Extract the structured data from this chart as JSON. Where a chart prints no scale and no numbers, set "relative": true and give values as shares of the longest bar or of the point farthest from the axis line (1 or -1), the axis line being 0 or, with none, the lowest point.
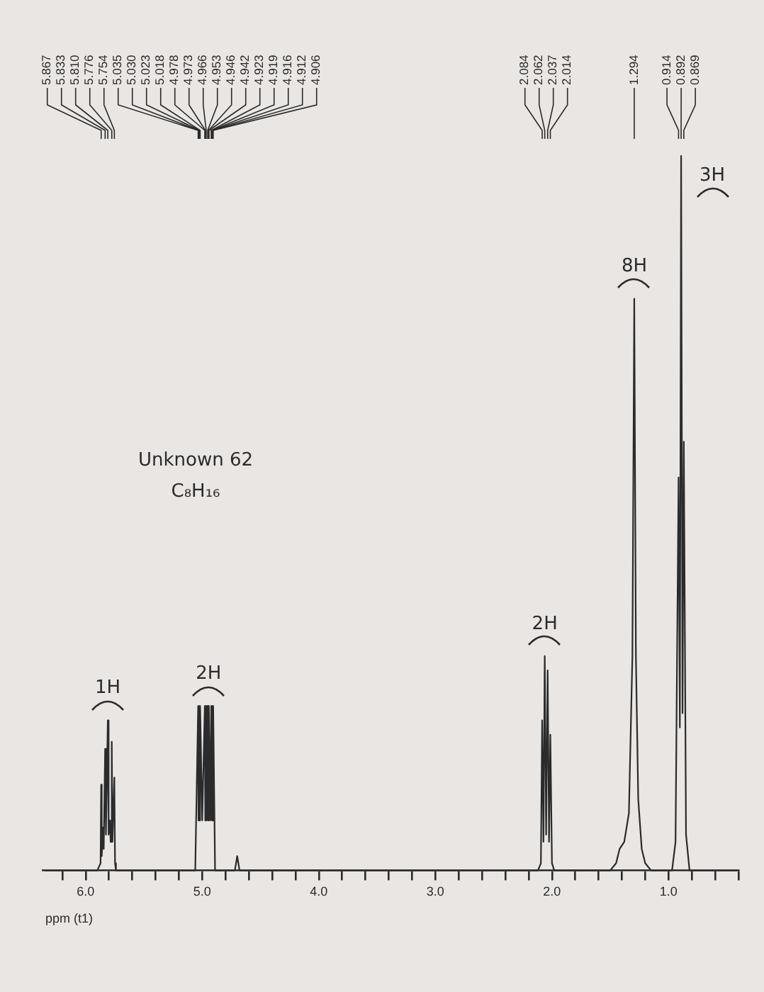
{
  "chart_data": {
    "type": "line",
    "title": "Unknown 62",
    "subtitle": "C₈H₁₆",
    "xlabel": "ppm (t1)",
    "relative": true,
    "color": "#2b2b2b",
    "xlim": [
      6.37,
      0.4
    ],
    "xticks": [
      {
        "value": 6.2,
        "label": null
      },
      {
        "value": 6,
        "label": "6.0"
      },
      {
        "value": 5.8,
        "label": null
      },
      {
        "value": 5.6,
        "label": null
      },
      {
        "value": 5.4,
        "label": null
      },
      {
        "value": 5.2,
        "label": null
      },
      {
        "value": 5,
        "label": "5.0"
      },
      {
        "value": 4.8,
        "label": null
      },
      {
        "value": 4.6,
        "label": null
      },
      {
        "value": 4.4,
        "label": null
      },
      {
        "value": 4.2,
        "label": null
      },
      {
        "value": 4,
        "label": "4.0"
      },
      {
        "value": 3.8,
        "label": null
      },
      {
        "value": 3.6,
        "label": null
      },
      {
        "value": 3.4,
        "label": null
      },
      {
        "value": 3.2,
        "label": null
      },
      {
        "value": 3,
        "label": "3.0"
      },
      {
        "value": 2.8,
        "label": null
      },
      {
        "value": 2.6,
        "label": null
      },
      {
        "value": 2.4,
        "label": null
      },
      {
        "value": 2.2,
        "label": null
      },
      {
        "value": 2,
        "label": "2.0"
      },
      {
        "value": 1.8,
        "label": null
      },
      {
        "value": 1.6,
        "label": null
      },
      {
        "value": 1.4,
        "label": null
      },
      {
        "value": 1.2,
        "label": null
      },
      {
        "value": 1,
        "label": "1.0"
      },
      {
        "value": 0.8,
        "label": null
      },
      {
        "value": 0.6,
        "label": null
      },
      {
        "value": 0.4,
        "label": null
      }
    ],
    "x": [
      6.35,
      5.9,
      5.872,
      5.867,
      5.862,
      5.85,
      5.845,
      5.833,
      5.826,
      5.81,
      5.803,
      5.79,
      5.786,
      5.776,
      5.77,
      5.754,
      5.748,
      5.74,
      5.06,
      5.035,
      5.032,
      5.03,
      5.027,
      5.023,
      5.02,
      5.018,
      5.0,
      4.978,
      4.975,
      4.973,
      4.97,
      4.966,
      4.96,
      4.953,
      4.95,
      4.946,
      4.944,
      4.942,
      4.93,
      4.923,
      4.921,
      4.919,
      4.917,
      4.916,
      4.914,
      4.912,
      4.909,
      4.906,
      4.89,
      4.72,
      4.7,
      4.68,
      2.12,
      2.095,
      2.084,
      2.073,
      2.062,
      2.05,
      2.037,
      2.025,
      2.014,
      2.0,
      1.98,
      1.5,
      1.45,
      1.42,
      1.38,
      1.34,
      1.31,
      1.294,
      1.28,
      1.26,
      1.23,
      1.2,
      1.15,
      0.97,
      0.94,
      0.914,
      0.903,
      0.892,
      0.88,
      0.869,
      0.85,
      0.82,
      0.41
    ],
    "values": [
      0,
      0,
      0.01,
      0.12,
      0.02,
      0.06,
      0.03,
      0.17,
      0.05,
      0.21,
      0.05,
      0.07,
      0.04,
      0.18,
      0.04,
      0.13,
      0.01,
      0,
      0,
      0.23,
      0.07,
      0.23,
      0.07,
      0.23,
      0.07,
      0.23,
      0.07,
      0.23,
      0.07,
      0.23,
      0.07,
      0.23,
      0.07,
      0.23,
      0.07,
      0.23,
      0.07,
      0.23,
      0.07,
      0.23,
      0.07,
      0.23,
      0.07,
      0.23,
      0.07,
      0.23,
      0.07,
      0.23,
      0,
      0,
      0.02,
      0,
      0,
      0.01,
      0.21,
      0.04,
      0.3,
      0.05,
      0.28,
      0.04,
      0.19,
      0.01,
      0,
      0,
      0.01,
      0.03,
      0.04,
      0.08,
      0.3,
      0.8,
      0.3,
      0.1,
      0.03,
      0.01,
      0,
      0,
      0.04,
      0.55,
      0.2,
      1,
      0.22,
      0.6,
      0.05,
      0,
      0
    ],
    "annotations": [
      "5.867",
      "5.833",
      "5.810",
      "5.776",
      "5.754",
      "5.035",
      "5.030",
      "5.023",
      "5.018",
      "4.978",
      "4.973",
      "4.966",
      "4.953",
      "4.946",
      "4.942",
      "4.923",
      "4.919",
      "4.916",
      "4.912",
      "4.906",
      "2.084",
      "2.062",
      "2.037",
      "2.014",
      "1.294",
      "0.914",
      "0.892",
      "0.869",
      {
        "text": "1H",
        "x": 5.81,
        "y": 0.21
      },
      {
        "text": "2H",
        "x": 4.946,
        "y": 0.23
      },
      {
        "text": "2H",
        "x": 2.062,
        "y": 0.3
      },
      {
        "text": "8H",
        "x": 1.294,
        "y": 0.8
      },
      {
        "text": "3H",
        "x": 0.892,
        "y": 1
      }
    ]
  }
}
